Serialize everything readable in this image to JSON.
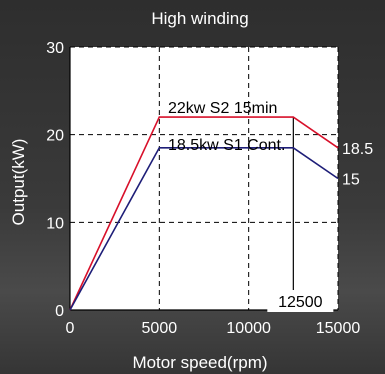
{
  "chart_data": {
    "type": "line",
    "title": "High winding",
    "xlabel": "Motor speed(rpm)",
    "ylabel": "Output(kW)",
    "xlim": [
      0,
      15000
    ],
    "ylim": [
      0,
      30
    ],
    "x_ticks": [
      {
        "value": 0,
        "label": "0"
      },
      {
        "value": 5000,
        "label": "5000"
      },
      {
        "value": 10000,
        "label": "10000"
      },
      {
        "value": 15000,
        "label": "15000"
      }
    ],
    "y_ticks": [
      {
        "value": 0,
        "label": "0"
      },
      {
        "value": 10,
        "label": "10"
      },
      {
        "value": 20,
        "label": "20"
      },
      {
        "value": 30,
        "label": "30"
      }
    ],
    "grid": "dashed",
    "series": [
      {
        "name": "22kw S2 15min",
        "color": "#d8102a",
        "x": [
          0,
          5000,
          12500,
          15000
        ],
        "y": [
          0,
          22,
          22,
          18.5
        ],
        "end_label": "18.5"
      },
      {
        "name": "18.5kw S1 Cont.",
        "color": "#1e1e78",
        "x": [
          0,
          5000,
          12500,
          15000
        ],
        "y": [
          0,
          18.5,
          18.5,
          15
        ],
        "end_label": "15"
      }
    ],
    "annotations": [
      {
        "text": "12500",
        "x": 12500
      }
    ]
  }
}
